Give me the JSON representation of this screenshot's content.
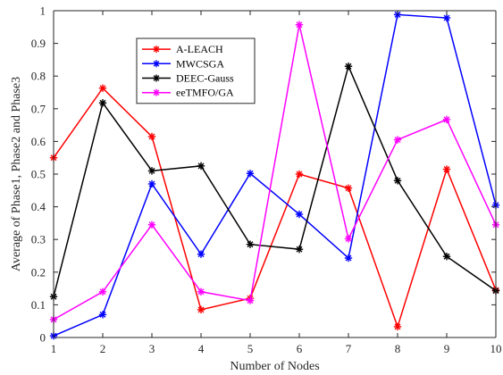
{
  "chart_data": {
    "type": "line",
    "title": "",
    "xlabel": "Number of Nodes",
    "ylabel": "Average of Phase1, Phase2 and Phase3",
    "x": [
      1,
      2,
      3,
      4,
      5,
      6,
      7,
      8,
      9,
      10
    ],
    "xlim": [
      1,
      10
    ],
    "ylim": [
      0,
      1
    ],
    "xticks": [
      "1",
      "2",
      "3",
      "4",
      "5",
      "6",
      "7",
      "8",
      "9",
      "10"
    ],
    "yticks": [
      "0",
      "0.1",
      "0.2",
      "0.3",
      "0.4",
      "0.5",
      "0.6",
      "0.7",
      "0.8",
      "0.9",
      "1"
    ],
    "grid": false,
    "legend_position": "top-left",
    "marker": "asterisk",
    "series": [
      {
        "name": "A-LEACH",
        "color": "#ff0000",
        "values": [
          0.55,
          0.763,
          0.615,
          0.085,
          0.12,
          0.5,
          0.457,
          0.033,
          0.515,
          0.145
        ]
      },
      {
        "name": "MWCSGA",
        "color": "#0000ff",
        "values": [
          0.005,
          0.07,
          0.47,
          0.255,
          0.502,
          0.377,
          0.243,
          0.988,
          0.978,
          0.405
        ]
      },
      {
        "name": "DEEC-Gauss",
        "color": "#000000",
        "values": [
          0.125,
          0.718,
          0.51,
          0.525,
          0.285,
          0.27,
          0.83,
          0.48,
          0.248,
          0.143
        ]
      },
      {
        "name": "eeTMFO/GA",
        "color": "#ff00ff",
        "values": [
          0.055,
          0.14,
          0.345,
          0.14,
          0.113,
          0.957,
          0.302,
          0.605,
          0.667,
          0.345
        ]
      }
    ]
  }
}
